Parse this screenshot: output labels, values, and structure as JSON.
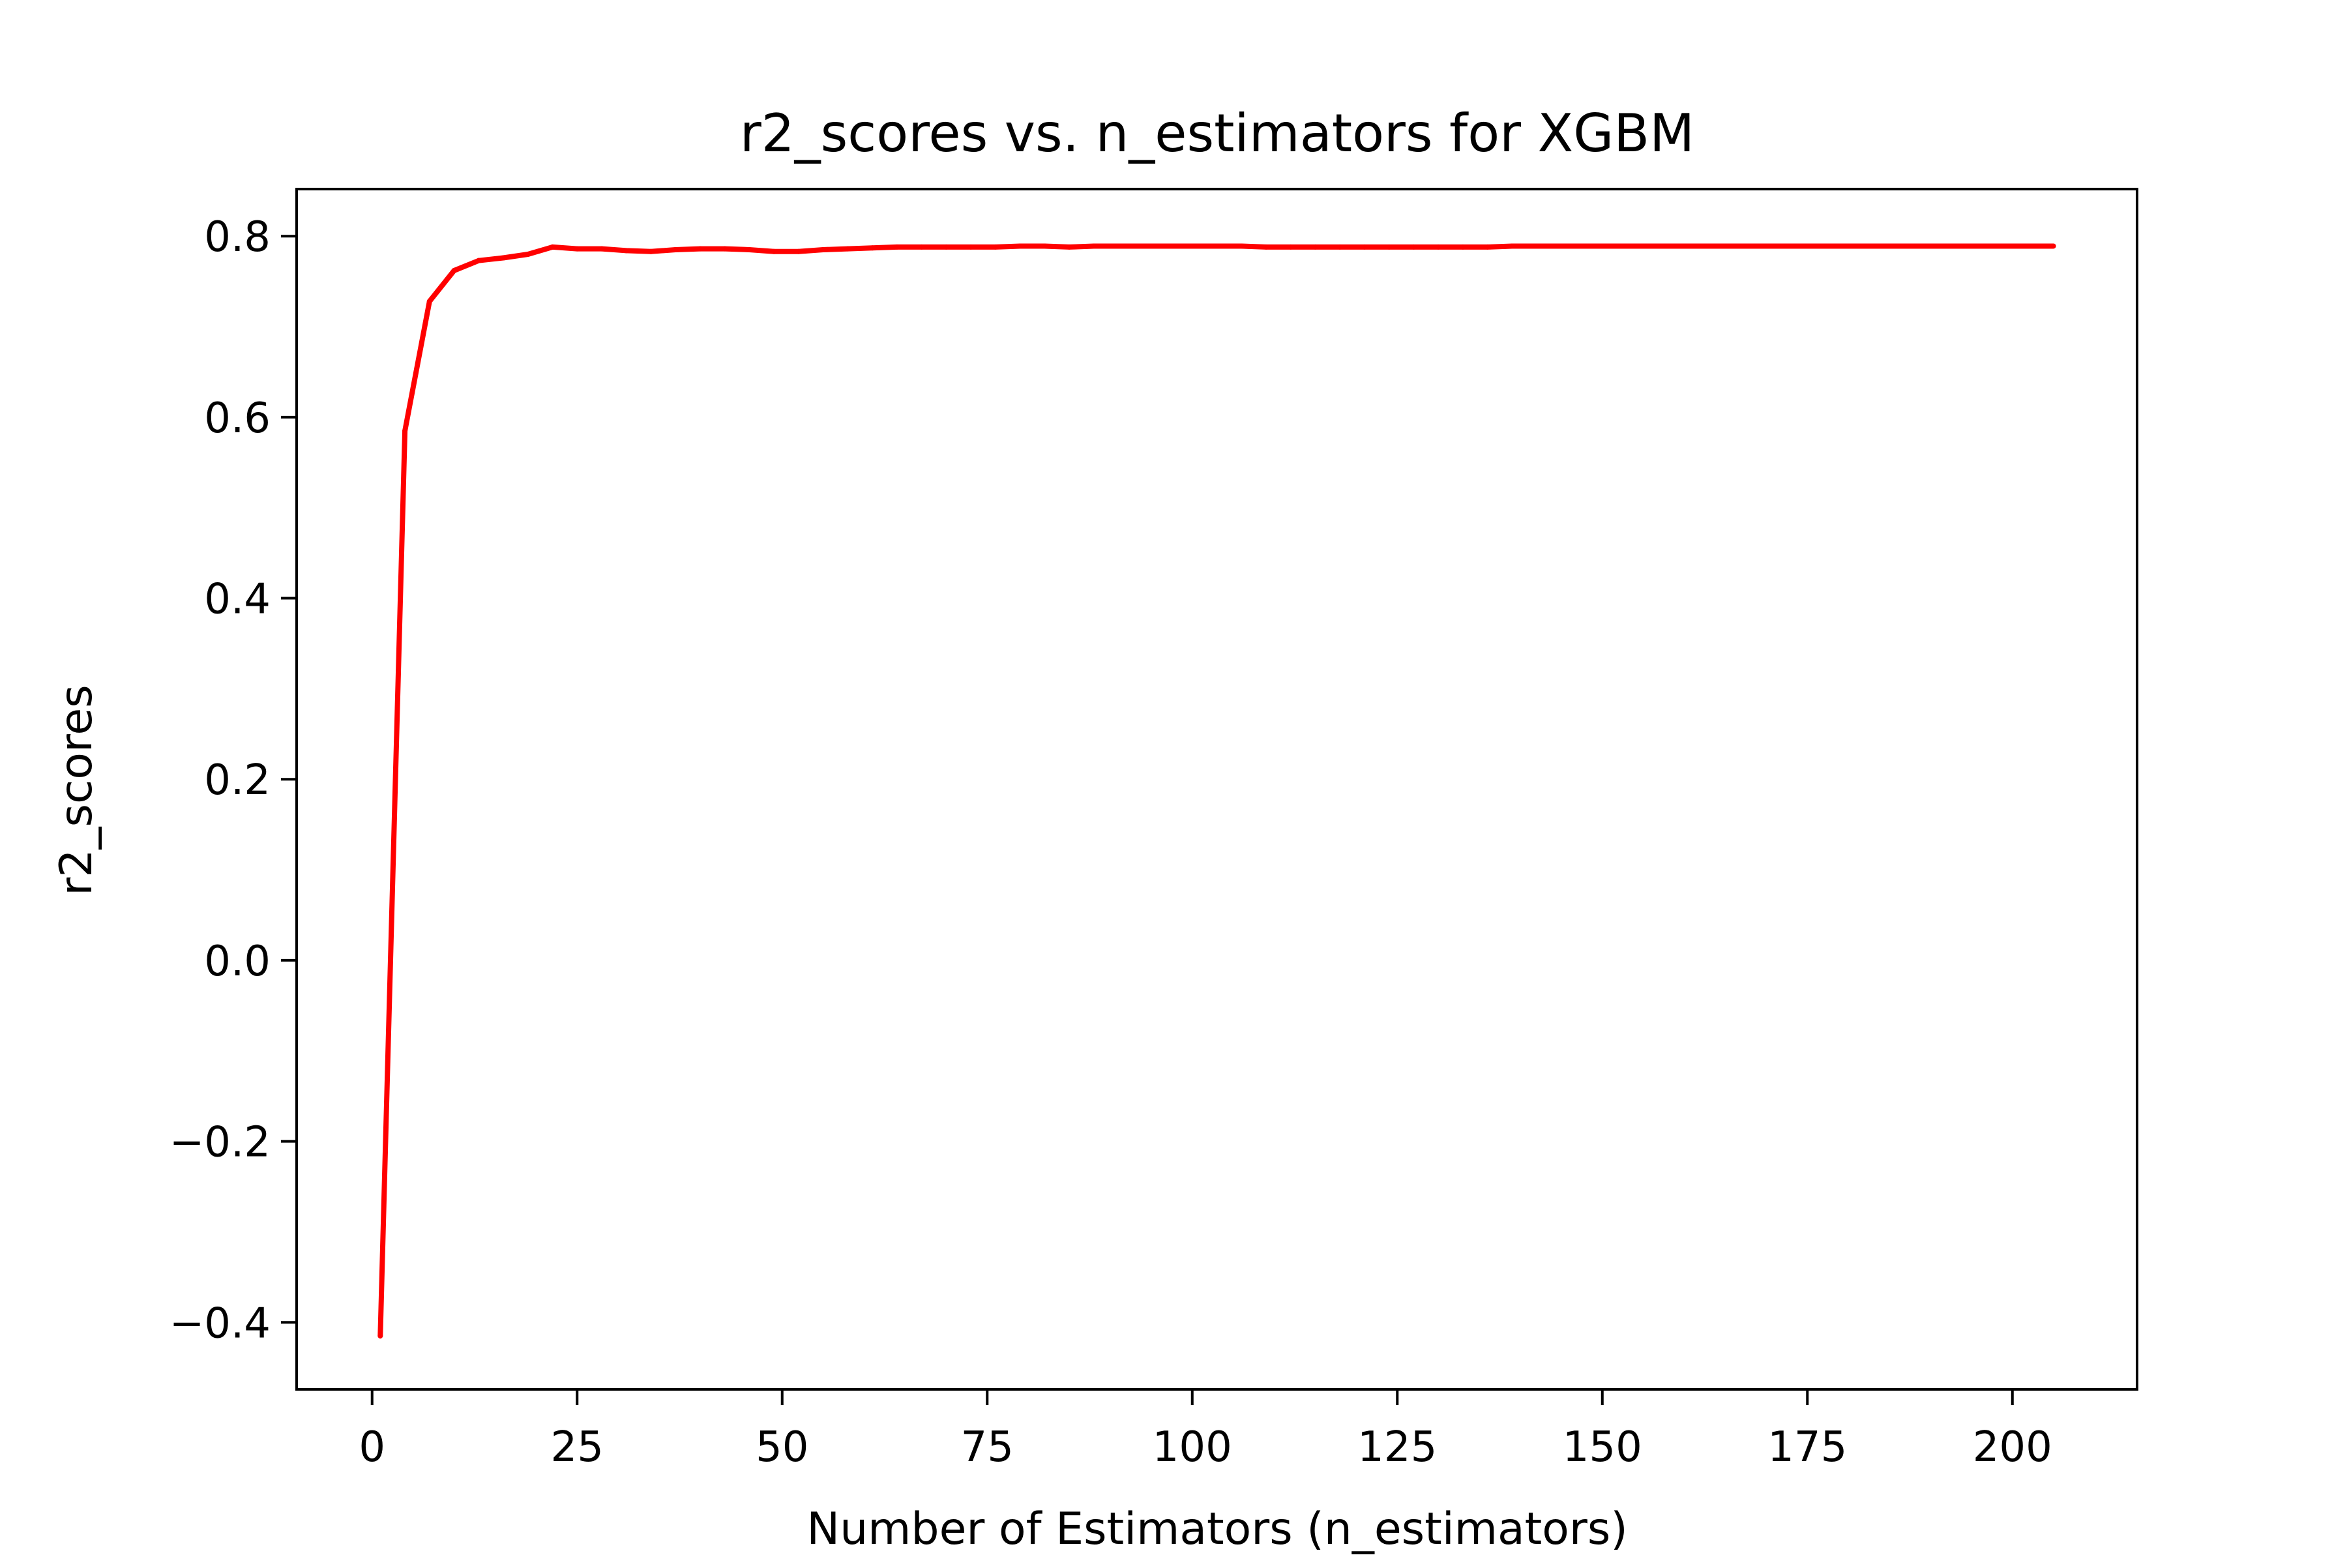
{
  "chart_data": {
    "type": "line",
    "title": "r2_scores vs. n_estimators for XGBM",
    "xlabel": "Number of Estimators (n_estimators)",
    "ylabel": "r2_scores",
    "xlim": [
      -9.2,
      215.2
    ],
    "ylim": [
      -0.474,
      0.852
    ],
    "xticks": [
      0,
      25,
      50,
      75,
      100,
      125,
      150,
      175,
      200
    ],
    "xtick_labels": [
      "0",
      "25",
      "50",
      "75",
      "100",
      "125",
      "150",
      "175",
      "200"
    ],
    "yticks": [
      -0.4,
      -0.2,
      0.0,
      0.2,
      0.4,
      0.6,
      0.8
    ],
    "ytick_labels": [
      "−0.4",
      "−0.2",
      "0.0",
      "0.2",
      "0.4",
      "0.6",
      "0.8"
    ],
    "grid": false,
    "series": [
      {
        "color": "#ff0000",
        "x": [
          1,
          4,
          7,
          10,
          13,
          16,
          19,
          22,
          25,
          28,
          31,
          34,
          37,
          40,
          43,
          46,
          49,
          52,
          55,
          58,
          61,
          64,
          67,
          70,
          73,
          76,
          79,
          82,
          85,
          88,
          91,
          94,
          97,
          100,
          103,
          106,
          109,
          112,
          115,
          118,
          121,
          124,
          127,
          130,
          133,
          136,
          139,
          142,
          145,
          148,
          151,
          154,
          157,
          160,
          163,
          166,
          169,
          172,
          175,
          178,
          181,
          184,
          187,
          190,
          193,
          196,
          199,
          202,
          205
        ],
        "y": [
          -0.415,
          0.585,
          0.728,
          0.762,
          0.773,
          0.776,
          0.78,
          0.788,
          0.786,
          0.786,
          0.784,
          0.783,
          0.785,
          0.786,
          0.786,
          0.785,
          0.783,
          0.783,
          0.785,
          0.786,
          0.787,
          0.788,
          0.788,
          0.788,
          0.788,
          0.788,
          0.789,
          0.789,
          0.788,
          0.789,
          0.789,
          0.789,
          0.789,
          0.789,
          0.789,
          0.789,
          0.788,
          0.788,
          0.788,
          0.788,
          0.788,
          0.788,
          0.788,
          0.788,
          0.788,
          0.788,
          0.789,
          0.789,
          0.789,
          0.789,
          0.789,
          0.789,
          0.789,
          0.789,
          0.789,
          0.789,
          0.789,
          0.789,
          0.789,
          0.789,
          0.789,
          0.789,
          0.789,
          0.789,
          0.789,
          0.789,
          0.789,
          0.789,
          0.789
        ]
      }
    ]
  }
}
